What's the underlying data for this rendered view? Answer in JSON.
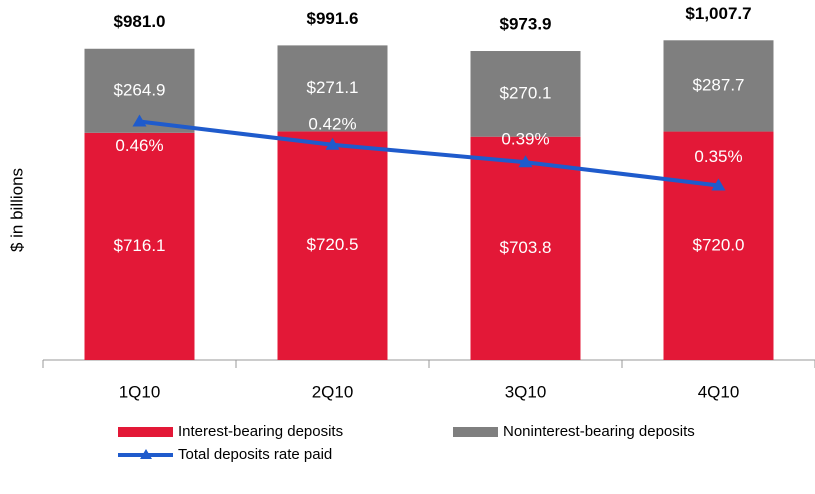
{
  "chart_data": {
    "type": "stacked_bar_line",
    "y_label": "$ in billions",
    "categories": [
      "1Q10",
      "2Q10",
      "3Q10",
      "4Q10"
    ],
    "series": [
      {
        "name": "Interest-bearing deposits",
        "color": "#e31837",
        "values": [
          716.1,
          720.5,
          703.8,
          720.0
        ],
        "value_labels": [
          "$716.1",
          "$720.5",
          "$703.8",
          "$720.0"
        ]
      },
      {
        "name": "Noninterest-bearing deposits",
        "color": "#7f7f7f",
        "values": [
          264.9,
          271.1,
          270.1,
          287.7
        ],
        "value_labels": [
          "$264.9",
          "$271.1",
          "$270.1",
          "$287.7"
        ]
      },
      {
        "name": "Total deposits rate paid",
        "color": "#1f5bcc",
        "axis": "y2",
        "values": [
          0.46,
          0.42,
          0.39,
          0.35
        ],
        "value_labels": [
          "0.46%",
          "0.42%",
          "0.39%",
          "0.35%"
        ]
      }
    ],
    "totals": [
      981.0,
      991.6,
      973.9,
      1007.7
    ],
    "total_labels": [
      "$981.0",
      "$991.6",
      "$973.9",
      "$1,007.7"
    ],
    "ylim": [
      0,
      1100
    ],
    "y2lim": [
      0.05,
      0.65
    ]
  }
}
